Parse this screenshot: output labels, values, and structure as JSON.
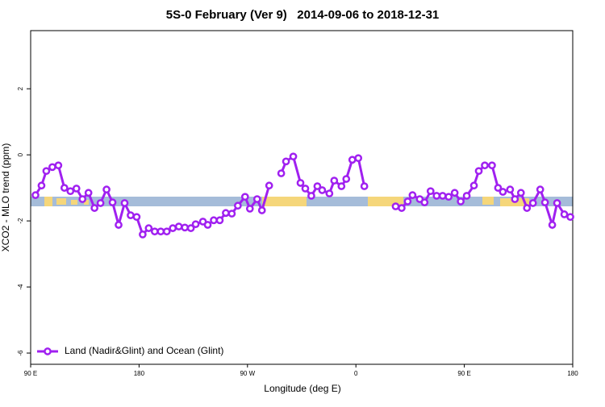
{
  "chart_data": {
    "type": "line",
    "title": "5S-0 February (Ver 9)   2014-09-06 to 2018-12-31",
    "x_label": "Longitude (deg E)",
    "y_label": "XCO2 - MLO trend (ppm)",
    "x": [
      94,
      99,
      103,
      108,
      113,
      118,
      123,
      128,
      133,
      138,
      143,
      148,
      153,
      158,
      163,
      168,
      173,
      178,
      183,
      188,
      193,
      198,
      203,
      208,
      213,
      218,
      223,
      227,
      233,
      237,
      242,
      247,
      252,
      257,
      262,
      268,
      272,
      278,
      282,
      288,
      292,
      298,
      302,
      308,
      314,
      318,
      323,
      328,
      332,
      338,
      342,
      348,
      352,
      357,
      362,
      367,
      380,
      393,
      398,
      403,
      407,
      413,
      417,
      422,
      427,
      432,
      437,
      442,
      447,
      452,
      458,
      462,
      467,
      473,
      478,
      482,
      488,
      492,
      497,
      502,
      507,
      513,
      517,
      523,
      527,
      533,
      538
    ],
    "series": [
      {
        "name": "Land (Nadir&Glint) and Ocean (Glint)",
        "color": "#a020f0",
        "values": [
          -1.22,
          -0.93,
          -0.49,
          -0.37,
          -0.32,
          -1.0,
          -1.1,
          -1.02,
          -1.34,
          -1.15,
          -1.61,
          -1.46,
          -1.05,
          -1.44,
          -2.12,
          -1.46,
          -1.83,
          -1.88,
          -2.41,
          -2.22,
          -2.32,
          -2.32,
          -2.32,
          -2.22,
          -2.17,
          -2.2,
          -2.22,
          -2.1,
          -2.02,
          -2.12,
          -1.98,
          -1.98,
          -1.76,
          -1.78,
          -1.54,
          -1.27,
          -1.63,
          -1.34,
          -1.68,
          -0.93,
          null,
          -0.56,
          -0.2,
          -0.05,
          -0.85,
          -1.02,
          -1.24,
          -0.95,
          -1.07,
          -1.17,
          -0.78,
          -0.95,
          -0.73,
          -0.15,
          -0.1,
          -0.95,
          null,
          -1.56,
          -1.61,
          -1.41,
          -1.22,
          -1.34,
          -1.44,
          -1.1,
          -1.24,
          -1.24,
          -1.27,
          -1.15,
          -1.41,
          -1.24,
          -0.93,
          -0.49,
          -0.32,
          -0.32,
          -1.0,
          -1.12,
          -1.05,
          -1.34,
          -1.15,
          -1.61,
          -1.46,
          -1.05,
          -1.44,
          -2.12,
          -1.46,
          -1.8,
          -1.88
        ]
      }
    ],
    "xlim": [
      90,
      540
    ],
    "xticks": [
      {
        "value": 90,
        "label": "90 E"
      },
      180,
      {
        "value": 270,
        "label": "90 W"
      },
      {
        "value": 360,
        "label": "0"
      },
      {
        "value": 450,
        "label": "90 E"
      },
      {
        "value": 540,
        "label": "180"
      }
    ],
    "ylim": [
      -6.34,
      3.76
    ],
    "yticks": [
      2,
      0,
      -2,
      -4,
      -6
    ],
    "grid": false,
    "legend": "bottom-left"
  }
}
